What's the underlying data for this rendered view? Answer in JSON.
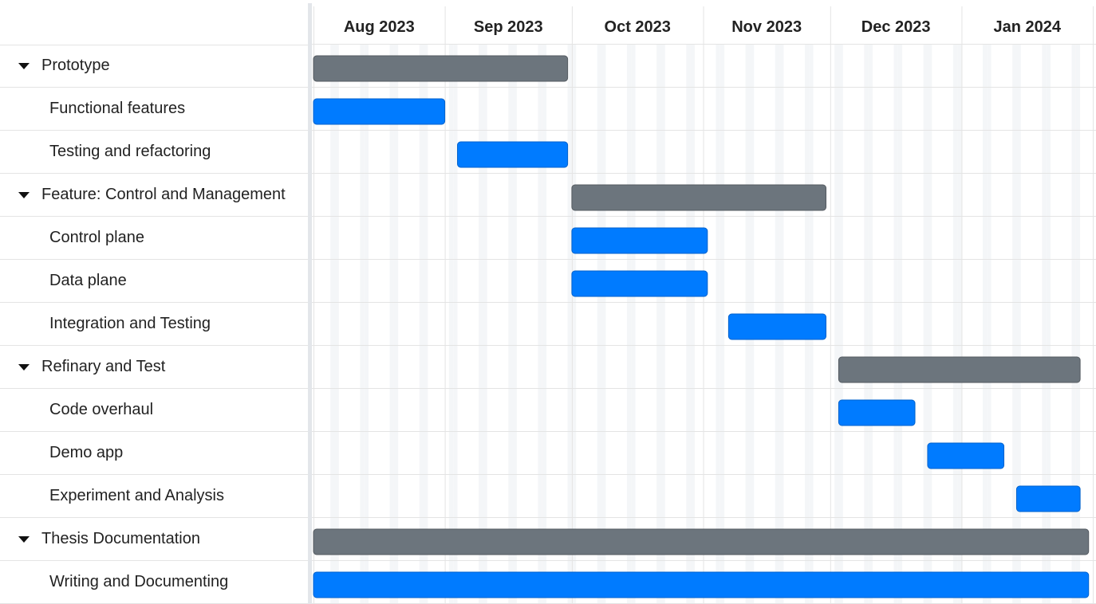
{
  "timeline": {
    "months": [
      {
        "label": "Aug 2023",
        "start": "2023-08-01",
        "days": 31
      },
      {
        "label": "Sep 2023",
        "start": "2023-09-01",
        "days": 30
      },
      {
        "label": "Oct 2023",
        "start": "2023-10-01",
        "days": 31
      },
      {
        "label": "Nov 2023",
        "start": "2023-11-01",
        "days": 30
      },
      {
        "label": "Dec 2023",
        "start": "2023-12-01",
        "days": 31
      },
      {
        "label": "Jan 2024",
        "start": "2024-01-01",
        "days": 31
      }
    ]
  },
  "tasks": [
    {
      "name": "Prototype",
      "type": "group",
      "start": "2023-08-01",
      "end": "2023-09-30"
    },
    {
      "name": "Functional features",
      "type": "task",
      "start": "2023-08-01",
      "end": "2023-09-01"
    },
    {
      "name": "Testing and refactoring",
      "type": "task",
      "start": "2023-09-04",
      "end": "2023-09-30"
    },
    {
      "name": "Feature: Control and Management",
      "type": "group",
      "start": "2023-10-01",
      "end": "2023-11-30"
    },
    {
      "name": "Control plane",
      "type": "task",
      "start": "2023-10-01",
      "end": "2023-11-02"
    },
    {
      "name": "Data plane",
      "type": "task",
      "start": "2023-10-01",
      "end": "2023-11-02"
    },
    {
      "name": "Integration and Testing",
      "type": "task",
      "start": "2023-11-07",
      "end": "2023-11-30"
    },
    {
      "name": "Refinary and Test",
      "type": "group",
      "start": "2023-12-03",
      "end": "2024-01-29"
    },
    {
      "name": "Code overhaul",
      "type": "task",
      "start": "2023-12-03",
      "end": "2023-12-21"
    },
    {
      "name": "Demo app",
      "type": "task",
      "start": "2023-12-24",
      "end": "2024-01-11"
    },
    {
      "name": "Experiment and Analysis",
      "type": "task",
      "start": "2024-01-14",
      "end": "2024-01-29"
    },
    {
      "name": "Thesis Documentation",
      "type": "group",
      "start": "2023-08-01",
      "end": "2024-01-31"
    },
    {
      "name": "Writing and Documenting",
      "type": "task",
      "start": "2023-08-01",
      "end": "2024-01-31"
    }
  ],
  "colors": {
    "group_bar": "#6c757d",
    "task_bar": "#007bff",
    "weekend_band": "#f4f6f8",
    "grid_line": "#e4e4e4"
  }
}
